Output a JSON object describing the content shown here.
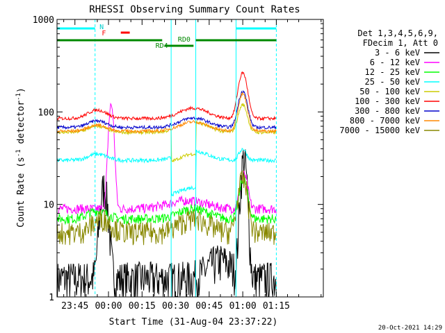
{
  "chart_data": {
    "type": "line",
    "title": "RHESSI Observing Summary Count Rates",
    "xlabel": "Start Time (31-Aug-04 23:37:22)",
    "ylabel_main": "Count Rate (s",
    "ylabel_sup1": "-1",
    "ylabel_mid": " detector",
    "ylabel_sup2": "-1",
    "ylabel_end": ")",
    "yscale": "log",
    "ylim": [
      1,
      1000
    ],
    "xlim_minutes": [
      -23,
      96
    ],
    "x_ticks": [
      {
        "label": "23:45",
        "m": -15
      },
      {
        "label": "00:00",
        "m": 0
      },
      {
        "label": "00:15",
        "m": 15
      },
      {
        "label": "00:30",
        "m": 30
      },
      {
        "label": "00:45",
        "m": 45
      },
      {
        "label": "01:00",
        "m": 60
      },
      {
        "label": "01:15",
        "m": 75
      }
    ],
    "y_ticks": [
      {
        "label": "1",
        "v": 1
      },
      {
        "label": "10",
        "v": 10
      },
      {
        "label": "100",
        "v": 100
      },
      {
        "label": "1000",
        "v": 1000
      }
    ],
    "legend_header": [
      "Det 1,3,4,5,6,9,",
      "FDecim 1, Att 0"
    ],
    "series": [
      {
        "name": "3 - 6 keV",
        "color": "#000000"
      },
      {
        "name": "6 - 12 keV",
        "color": "#ff00ff"
      },
      {
        "name": "12 - 25 keV",
        "color": "#00ff00"
      },
      {
        "name": "25 - 50 keV",
        "color": "#00ffff"
      },
      {
        "name": "50 - 100 keV",
        "color": "#cccc00"
      },
      {
        "name": "100 - 300 keV",
        "color": "#ff0000"
      },
      {
        "name": "300 - 800 keV",
        "color": "#0000cc"
      },
      {
        "name": "800 - 7000 keV",
        "color": "#ff8800"
      },
      {
        "name": "7000 - 15000 keV",
        "color": "#888800"
      }
    ],
    "flags": {
      "N_label": "N",
      "F_label": "F",
      "RD0_label": "RD0",
      "RD4_label": "RD4"
    },
    "night_boundaries_minutes": [
      -23,
      -6,
      28,
      39,
      57,
      75
    ],
    "footer_date": "20-Oct-2021 14:29"
  }
}
